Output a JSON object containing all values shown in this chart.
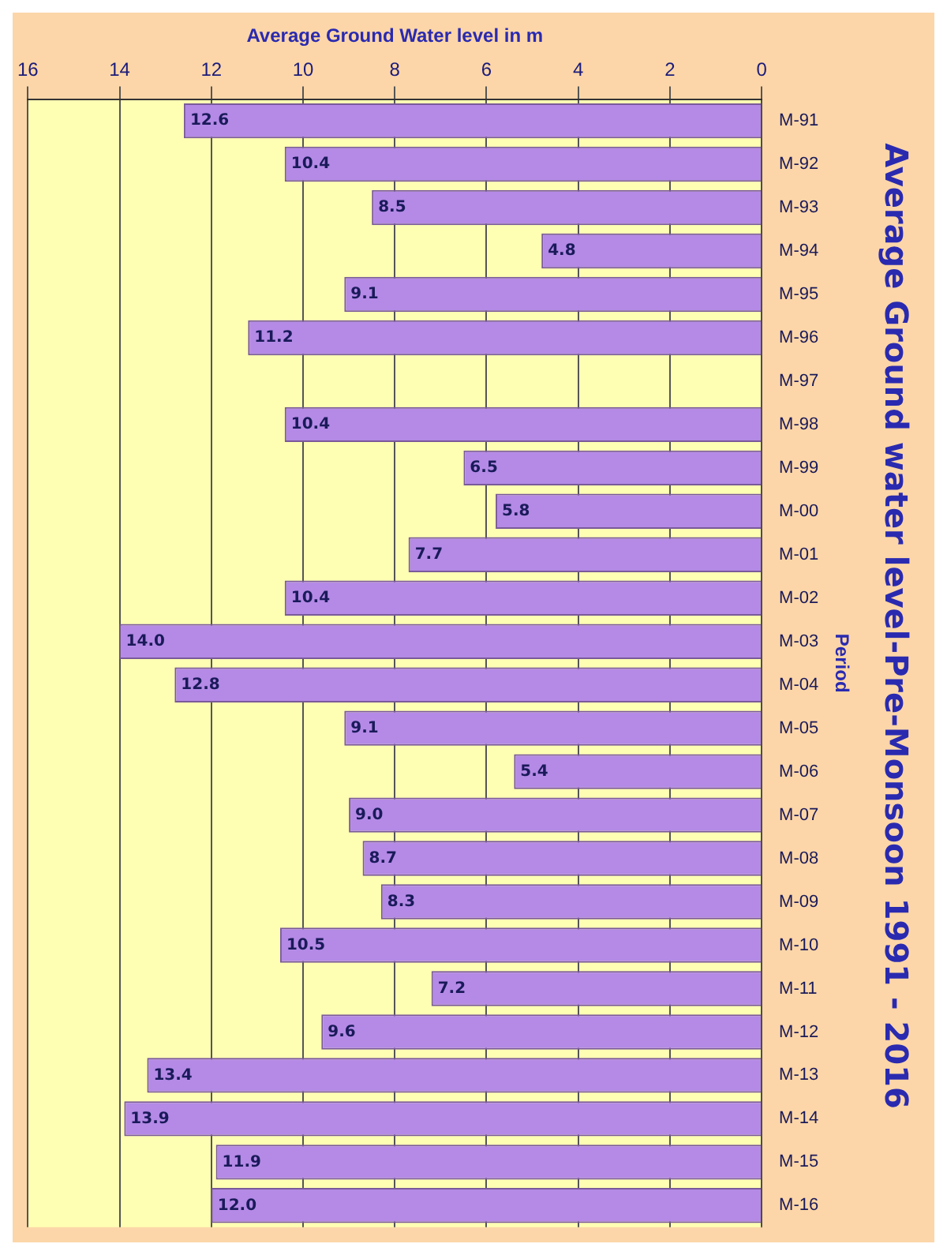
{
  "chart_data": {
    "type": "bar",
    "orientation": "horizontal",
    "title": "Average Ground water level-Pre-Monsoon 1991 - 2016",
    "xlabel": "Average Ground Water level in m",
    "ylabel": "Period",
    "categories": [
      "M-91",
      "M-92",
      "M-93",
      "M-94",
      "M-95",
      "M-96",
      "M-97",
      "M-98",
      "M-99",
      "M-00",
      "M-01",
      "M-02",
      "M-03",
      "M-04",
      "M-05",
      "M-06",
      "M-07",
      "M-08",
      "M-09",
      "M-10",
      "M-11",
      "M-12",
      "M-13",
      "M-14",
      "M-15",
      "M-16"
    ],
    "series": [
      {
        "color": "#b48ae6",
        "values": [
          12.6,
          10.4,
          8.5,
          4.8,
          9.1,
          11.2,
          null,
          10.4,
          6.5,
          5.8,
          7.7,
          10.4,
          14.0,
          12.8,
          9.1,
          5.4,
          9.0,
          8.7,
          8.3,
          10.5,
          7.2,
          9.6,
          13.4,
          13.9,
          11.9,
          12.0
        ],
        "value_labels": [
          "12.6",
          "10.4",
          "8.5",
          "4.8",
          "9.1",
          "11.2",
          null,
          "10.4",
          "6.5",
          "5.8",
          "7.7",
          "10.4",
          "14.0",
          "12.8",
          "9.1",
          "5.4",
          "9.0",
          "8.7",
          "8.3",
          "10.5",
          "7.2",
          "9.6",
          "13.4",
          "13.9",
          "11.9",
          "12.0"
        ]
      }
    ],
    "xlim": [
      16,
      0
    ],
    "xticks": [
      16,
      14,
      12,
      10,
      8,
      6,
      4,
      2,
      0
    ],
    "grid": "x",
    "legend": false
  }
}
